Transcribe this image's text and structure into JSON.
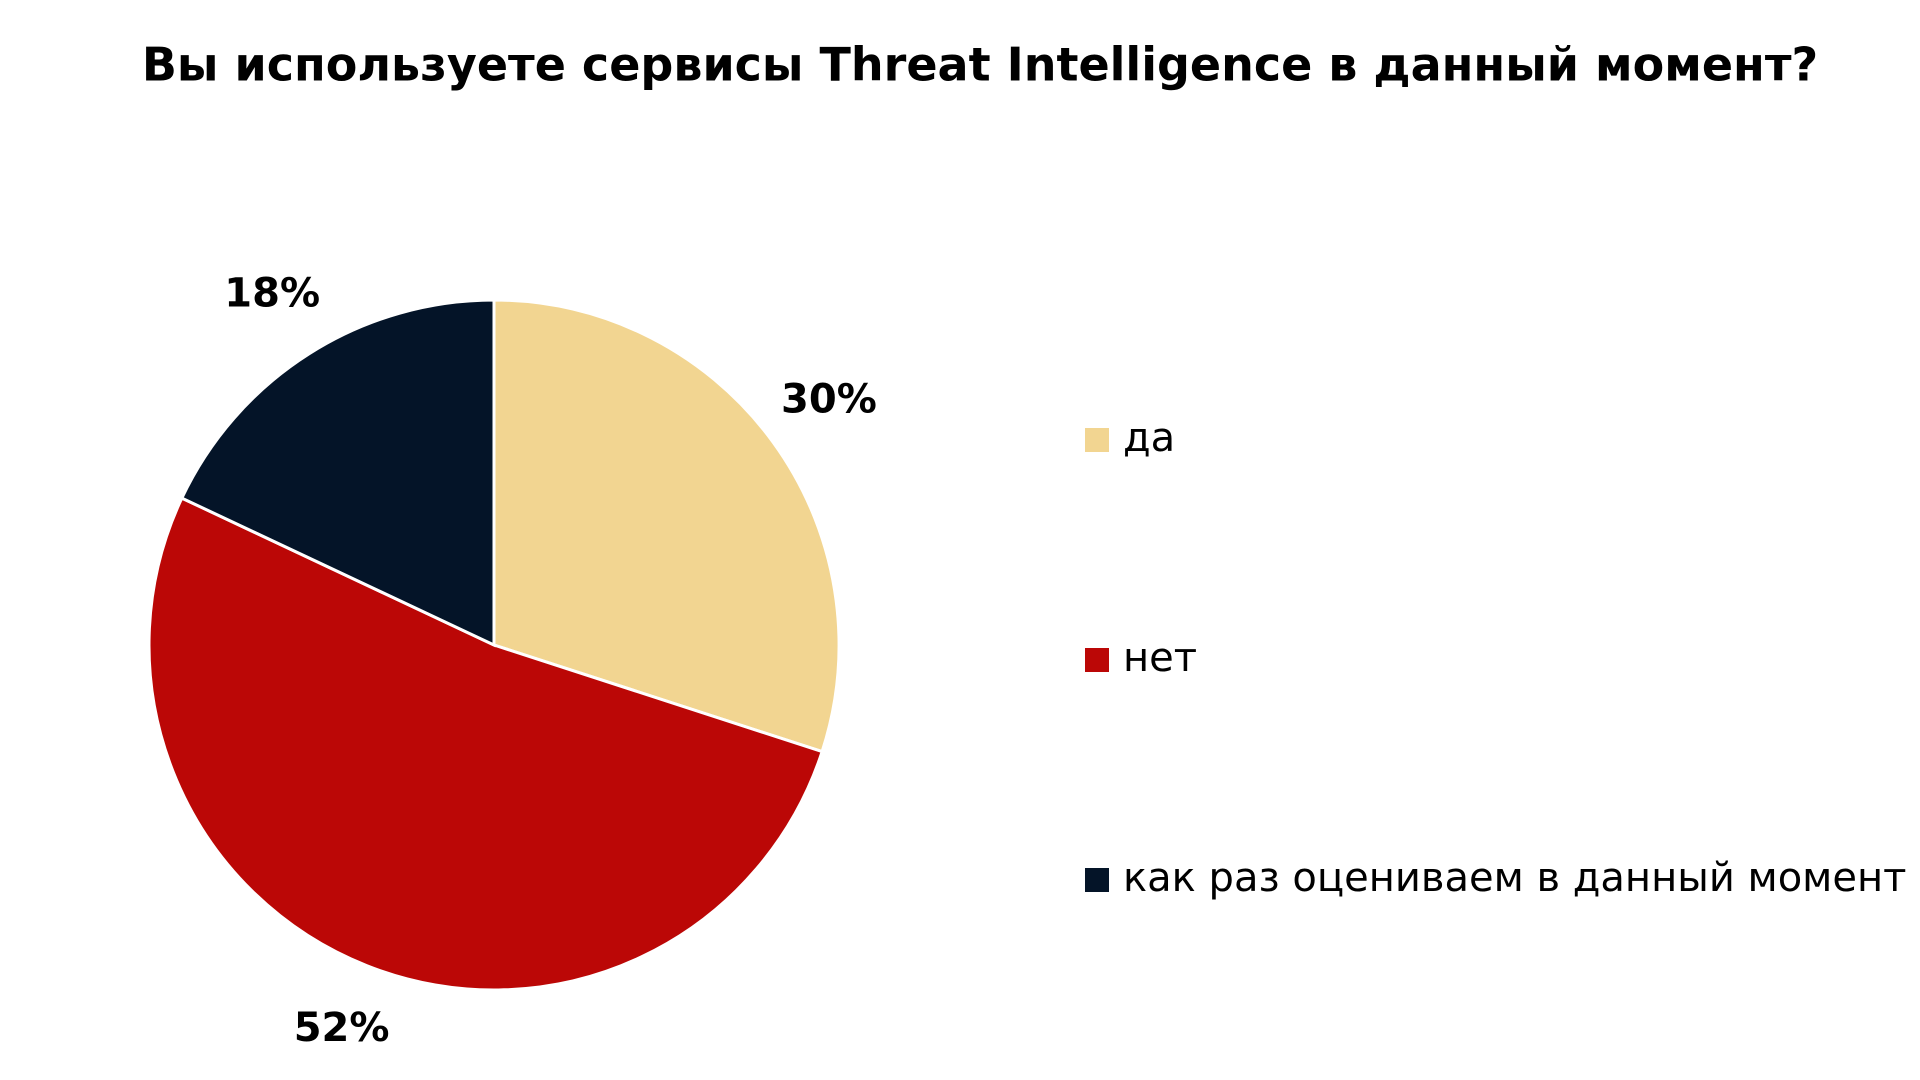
{
  "chart_data": {
    "type": "pie",
    "title": "Вы используете сервисы Threat Intelligence в данный момент?",
    "categories": [
      "да",
      "нет",
      "как раз оцениваем в данный момент"
    ],
    "values": [
      30,
      52,
      18
    ],
    "value_labels": [
      "30%",
      "52%",
      "18%"
    ],
    "colors": [
      "#f2d591",
      "#bb0706",
      "#041428"
    ],
    "legend": "right"
  }
}
